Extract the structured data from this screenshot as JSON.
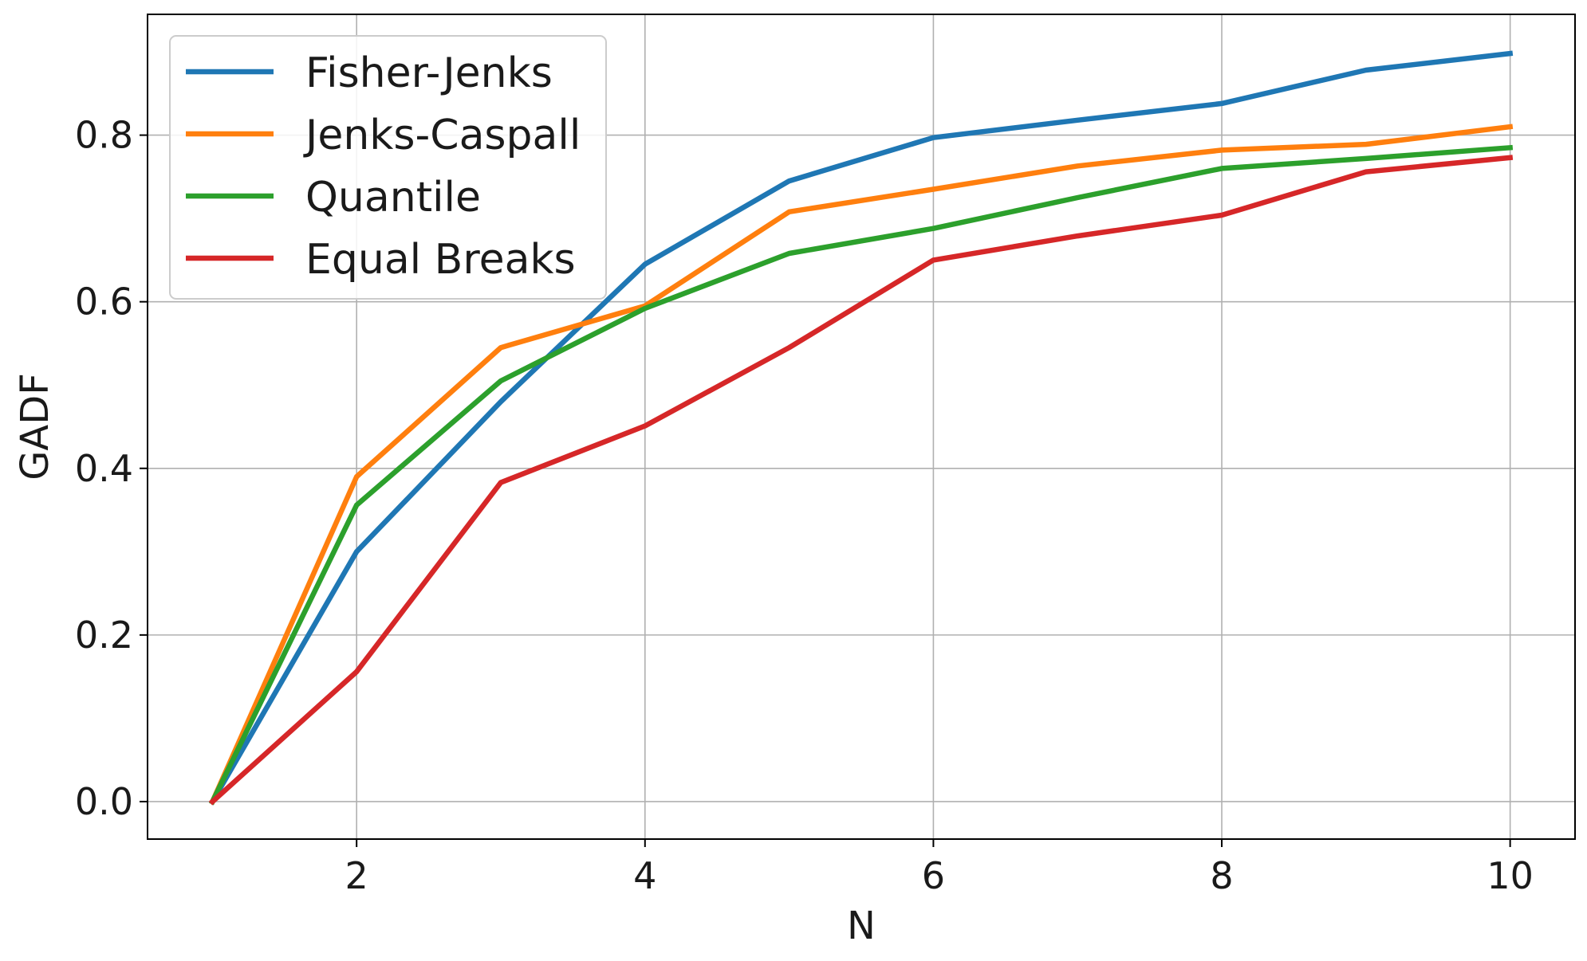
{
  "chart_data": {
    "type": "line",
    "xlabel": "N",
    "ylabel": "GADF",
    "xlim": [
      0.55,
      10.45
    ],
    "ylim": [
      -0.045,
      0.945
    ],
    "xticks": [
      2,
      4,
      6,
      8,
      10
    ],
    "yticks": [
      0.0,
      0.2,
      0.4,
      0.6,
      0.8
    ],
    "xtick_labels": [
      "2",
      "4",
      "6",
      "8",
      "10"
    ],
    "ytick_labels": [
      "0.0",
      "0.2",
      "0.4",
      "0.6",
      "0.8"
    ],
    "grid": true,
    "legend_position": "top-left",
    "x": [
      1,
      2,
      3,
      4,
      5,
      6,
      7,
      8,
      9,
      10
    ],
    "series": [
      {
        "name": "Fisher-Jenks",
        "color": "#1f77b4",
        "values": [
          0.0,
          0.3,
          0.48,
          0.645,
          0.745,
          0.797,
          0.818,
          0.838,
          0.878,
          0.898
        ]
      },
      {
        "name": "Jenks-Caspall",
        "color": "#ff7f0e",
        "values": [
          0.0,
          0.39,
          0.545,
          0.595,
          0.708,
          0.735,
          0.763,
          0.782,
          0.789,
          0.81
        ]
      },
      {
        "name": "Quantile",
        "color": "#2ca02c",
        "values": [
          0.0,
          0.356,
          0.505,
          0.592,
          0.658,
          0.688,
          0.725,
          0.76,
          0.772,
          0.785
        ]
      },
      {
        "name": "Equal Breaks",
        "color": "#d62728",
        "values": [
          0.0,
          0.156,
          0.383,
          0.451,
          0.545,
          0.65,
          0.679,
          0.704,
          0.756,
          0.773
        ]
      }
    ]
  }
}
